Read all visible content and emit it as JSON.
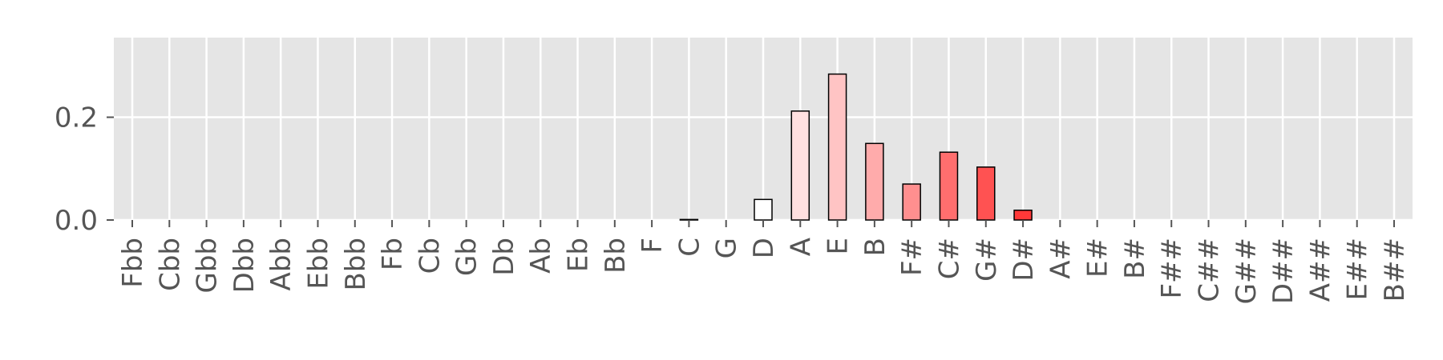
{
  "chart_data": {
    "type": "bar",
    "title": "",
    "xlabel": "",
    "ylabel": "",
    "categories": [
      "Fbb",
      "Cbb",
      "Gbb",
      "Dbb",
      "Abb",
      "Ebb",
      "Bbb",
      "Fb",
      "Cb",
      "Gb",
      "Db",
      "Ab",
      "Eb",
      "Bb",
      "F",
      "C",
      "G",
      "D",
      "A",
      "E",
      "B",
      "F#",
      "C#",
      "G#",
      "D#",
      "A#",
      "E#",
      "B#",
      "F##",
      "C##",
      "G##",
      "D##",
      "A##",
      "E##",
      "B##"
    ],
    "values": [
      0,
      0,
      0,
      0,
      0,
      0,
      0,
      0,
      0,
      0,
      0,
      0,
      0,
      0,
      0,
      0.001,
      0,
      0.04,
      0.212,
      0.284,
      0.149,
      0.07,
      0.132,
      0.103,
      0.019,
      0,
      0,
      0,
      0,
      0,
      0,
      0,
      0,
      0,
      0
    ],
    "bar_colors": [
      "#ffffff",
      "#ffffff",
      "#ffffff",
      "#ffffff",
      "#ffffff",
      "#ffffff",
      "#ffffff",
      "#ffffff",
      "#ffffff",
      "#ffffff",
      "#ffffff",
      "#ffffff",
      "#ffffff",
      "#ffffff",
      "#ffffff",
      "#ffffff",
      "#ffffff",
      "#ffffff",
      "#ffe0e0",
      "#ffc4c4",
      "#ffabab",
      "#ff8f8f",
      "#ff6e6e",
      "#ff5252",
      "#ff3838",
      "#ffffff",
      "#ffffff",
      "#ffffff",
      "#ffffff",
      "#ffffff",
      "#ffffff",
      "#ffffff",
      "#ffffff",
      "#ffffff",
      "#ffffff"
    ],
    "yticks": [
      0.0,
      0.2
    ],
    "ytick_labels": [
      "0.0",
      "0.2"
    ],
    "ylim": [
      0,
      0.355
    ],
    "grid": true,
    "legend": "none",
    "background_color": "#e5e5e5"
  }
}
